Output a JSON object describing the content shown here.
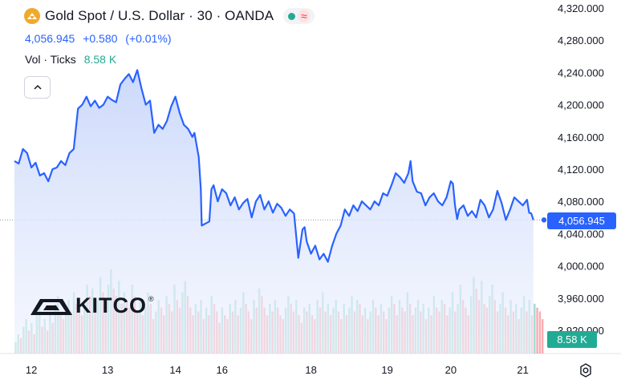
{
  "header": {
    "title": "Gold Spot / U.S. Dollar · 30 · OANDA",
    "wave_glyph": "≈"
  },
  "quote": {
    "price": "4,056.945",
    "change": "+0.580",
    "change_pct": "(+0.01%)"
  },
  "volume": {
    "label": "Vol · Ticks",
    "value": "8.58 K"
  },
  "badges": {
    "price": "4,056.945",
    "volume": "8.58 K"
  },
  "watermark": {
    "brand": "KITCO",
    "mark": "®"
  },
  "colors": {
    "line": "#2962ff",
    "up": "#22ab94",
    "down": "#f23645",
    "area": "#dbe4fb"
  },
  "chart_data": {
    "type": "area",
    "title": "Gold Spot / U.S. Dollar · 30 · OANDA",
    "y_axis_labels": [
      "4,320.000",
      "4,280.000",
      "4,240.000",
      "4,200.000",
      "4,160.000",
      "4,120.000",
      "4,080.000",
      "4,040.000",
      "4,000.000",
      "3,960.000",
      "3,920.000"
    ],
    "ylim": [
      3890,
      4330
    ],
    "x_tick_labels": [
      {
        "label": "12",
        "x": 0.4
      },
      {
        "label": "13",
        "x": 2.2
      },
      {
        "label": "14",
        "x": 3.8
      },
      {
        "label": "16",
        "x": 4.9
      },
      {
        "label": "18",
        "x": 7.0
      },
      {
        "label": "19",
        "x": 8.8
      },
      {
        "label": "20",
        "x": 10.3
      },
      {
        "label": "21",
        "x": 12.0
      }
    ],
    "xlim": [
      0,
      12.5
    ],
    "last_price": 4056.945,
    "series": [
      {
        "values": [
          [
            0.0,
            4130
          ],
          [
            0.1,
            4127
          ],
          [
            0.2,
            4145
          ],
          [
            0.3,
            4140
          ],
          [
            0.4,
            4122
          ],
          [
            0.5,
            4128
          ],
          [
            0.6,
            4112
          ],
          [
            0.7,
            4115
          ],
          [
            0.8,
            4105
          ],
          [
            0.9,
            4120
          ],
          [
            1.0,
            4122
          ],
          [
            1.1,
            4130
          ],
          [
            1.2,
            4125
          ],
          [
            1.3,
            4140
          ],
          [
            1.4,
            4145
          ],
          [
            1.5,
            4195
          ],
          [
            1.6,
            4200
          ],
          [
            1.7,
            4210
          ],
          [
            1.8,
            4198
          ],
          [
            1.9,
            4205
          ],
          [
            2.0,
            4196
          ],
          [
            2.1,
            4200
          ],
          [
            2.2,
            4210
          ],
          [
            2.3,
            4206
          ],
          [
            2.4,
            4203
          ],
          [
            2.5,
            4225
          ],
          [
            2.6,
            4232
          ],
          [
            2.7,
            4238
          ],
          [
            2.8,
            4228
          ],
          [
            2.9,
            4243
          ],
          [
            3.0,
            4220
          ],
          [
            3.1,
            4200
          ],
          [
            3.2,
            4205
          ],
          [
            3.3,
            4165
          ],
          [
            3.4,
            4175
          ],
          [
            3.5,
            4170
          ],
          [
            3.6,
            4180
          ],
          [
            3.7,
            4198
          ],
          [
            3.8,
            4210
          ],
          [
            3.9,
            4190
          ],
          [
            4.0,
            4175
          ],
          [
            4.1,
            4170
          ],
          [
            4.2,
            4160
          ],
          [
            4.25,
            4165
          ],
          [
            4.3,
            4150
          ],
          [
            4.35,
            4135
          ],
          [
            4.4,
            4095
          ],
          [
            4.42,
            4050
          ],
          [
            4.6,
            4055
          ],
          [
            4.65,
            4095
          ],
          [
            4.7,
            4100
          ],
          [
            4.8,
            4080
          ],
          [
            4.9,
            4095
          ],
          [
            5.0,
            4090
          ],
          [
            5.1,
            4075
          ],
          [
            5.2,
            4085
          ],
          [
            5.3,
            4070
          ],
          [
            5.4,
            4078
          ],
          [
            5.5,
            4083
          ],
          [
            5.6,
            4060
          ],
          [
            5.7,
            4080
          ],
          [
            5.8,
            4088
          ],
          [
            5.9,
            4070
          ],
          [
            6.0,
            4080
          ],
          [
            6.1,
            4066
          ],
          [
            6.2,
            4077
          ],
          [
            6.3,
            4072
          ],
          [
            6.4,
            4062
          ],
          [
            6.5,
            4070
          ],
          [
            6.6,
            4065
          ],
          [
            6.7,
            4010
          ],
          [
            6.8,
            4045
          ],
          [
            6.85,
            4048
          ],
          [
            6.9,
            4030
          ],
          [
            7.0,
            4015
          ],
          [
            7.1,
            4025
          ],
          [
            7.2,
            4008
          ],
          [
            7.3,
            4015
          ],
          [
            7.4,
            4005
          ],
          [
            7.5,
            4025
          ],
          [
            7.6,
            4040
          ],
          [
            7.7,
            4050
          ],
          [
            7.8,
            4070
          ],
          [
            7.9,
            4062
          ],
          [
            8.0,
            4075
          ],
          [
            8.1,
            4068
          ],
          [
            8.2,
            4080
          ],
          [
            8.3,
            4075
          ],
          [
            8.4,
            4070
          ],
          [
            8.5,
            4080
          ],
          [
            8.6,
            4075
          ],
          [
            8.7,
            4090
          ],
          [
            8.8,
            4087
          ],
          [
            8.9,
            4100
          ],
          [
            9.0,
            4115
          ],
          [
            9.1,
            4110
          ],
          [
            9.2,
            4103
          ],
          [
            9.3,
            4115
          ],
          [
            9.35,
            4130
          ],
          [
            9.4,
            4105
          ],
          [
            9.5,
            4092
          ],
          [
            9.6,
            4090
          ],
          [
            9.7,
            4075
          ],
          [
            9.8,
            4085
          ],
          [
            9.9,
            4090
          ],
          [
            10.0,
            4080
          ],
          [
            10.1,
            4075
          ],
          [
            10.2,
            4085
          ],
          [
            10.3,
            4105
          ],
          [
            10.35,
            4102
          ],
          [
            10.4,
            4075
          ],
          [
            10.45,
            4058
          ],
          [
            10.5,
            4070
          ],
          [
            10.6,
            4075
          ],
          [
            10.7,
            4062
          ],
          [
            10.8,
            4068
          ],
          [
            10.9,
            4060
          ],
          [
            11.0,
            4082
          ],
          [
            11.1,
            4075
          ],
          [
            11.2,
            4060
          ],
          [
            11.3,
            4070
          ],
          [
            11.4,
            4093
          ],
          [
            11.5,
            4078
          ],
          [
            11.6,
            4057
          ],
          [
            11.7,
            4070
          ],
          [
            11.8,
            4085
          ],
          [
            11.9,
            4080
          ],
          [
            12.0,
            4075
          ],
          [
            12.1,
            4082
          ],
          [
            12.15,
            4066
          ],
          [
            12.2,
            4065
          ],
          [
            12.25,
            4056.945
          ]
        ]
      }
    ],
    "volume": [
      3,
      5,
      4,
      7,
      9,
      6,
      8,
      5,
      10,
      12,
      7,
      9,
      6,
      11,
      8,
      13,
      15,
      10,
      9,
      12,
      14,
      11,
      16,
      13,
      12,
      10,
      14,
      18,
      15,
      17,
      12,
      14,
      20,
      16,
      13,
      18,
      22,
      17,
      15,
      19,
      13,
      16,
      14,
      12,
      18,
      15,
      11,
      14,
      10,
      12,
      16,
      13,
      9,
      11,
      14,
      12,
      10,
      15,
      13,
      11,
      18,
      14,
      12,
      16,
      19,
      15,
      12,
      10,
      13,
      11,
      14,
      9,
      12,
      10,
      15,
      13,
      11,
      8,
      12,
      10,
      9,
      13,
      11,
      14,
      10,
      12,
      16,
      13,
      11,
      9,
      14,
      12,
      17,
      15,
      12,
      10,
      13,
      11,
      14,
      12,
      10,
      9,
      12,
      15,
      13,
      11,
      14,
      10,
      8,
      12,
      11,
      13,
      10,
      9,
      14,
      12,
      16,
      11,
      13,
      10,
      12,
      14,
      11,
      9,
      13,
      10,
      12,
      15,
      11,
      14,
      13,
      10,
      12,
      9,
      11,
      14,
      12,
      10,
      13,
      11,
      9,
      12,
      15,
      13,
      10,
      14,
      12,
      11,
      16,
      13,
      10,
      12,
      14,
      11,
      13,
      9,
      12,
      10,
      15,
      12,
      11,
      14,
      13,
      10,
      12,
      16,
      11,
      13,
      18,
      14,
      12,
      10,
      15,
      20,
      17,
      14,
      19,
      13,
      12,
      15,
      18,
      14,
      11,
      13,
      16,
      12,
      10,
      14,
      11,
      13,
      9,
      12,
      15,
      11,
      14,
      10,
      13,
      12,
      11,
      9
    ]
  }
}
